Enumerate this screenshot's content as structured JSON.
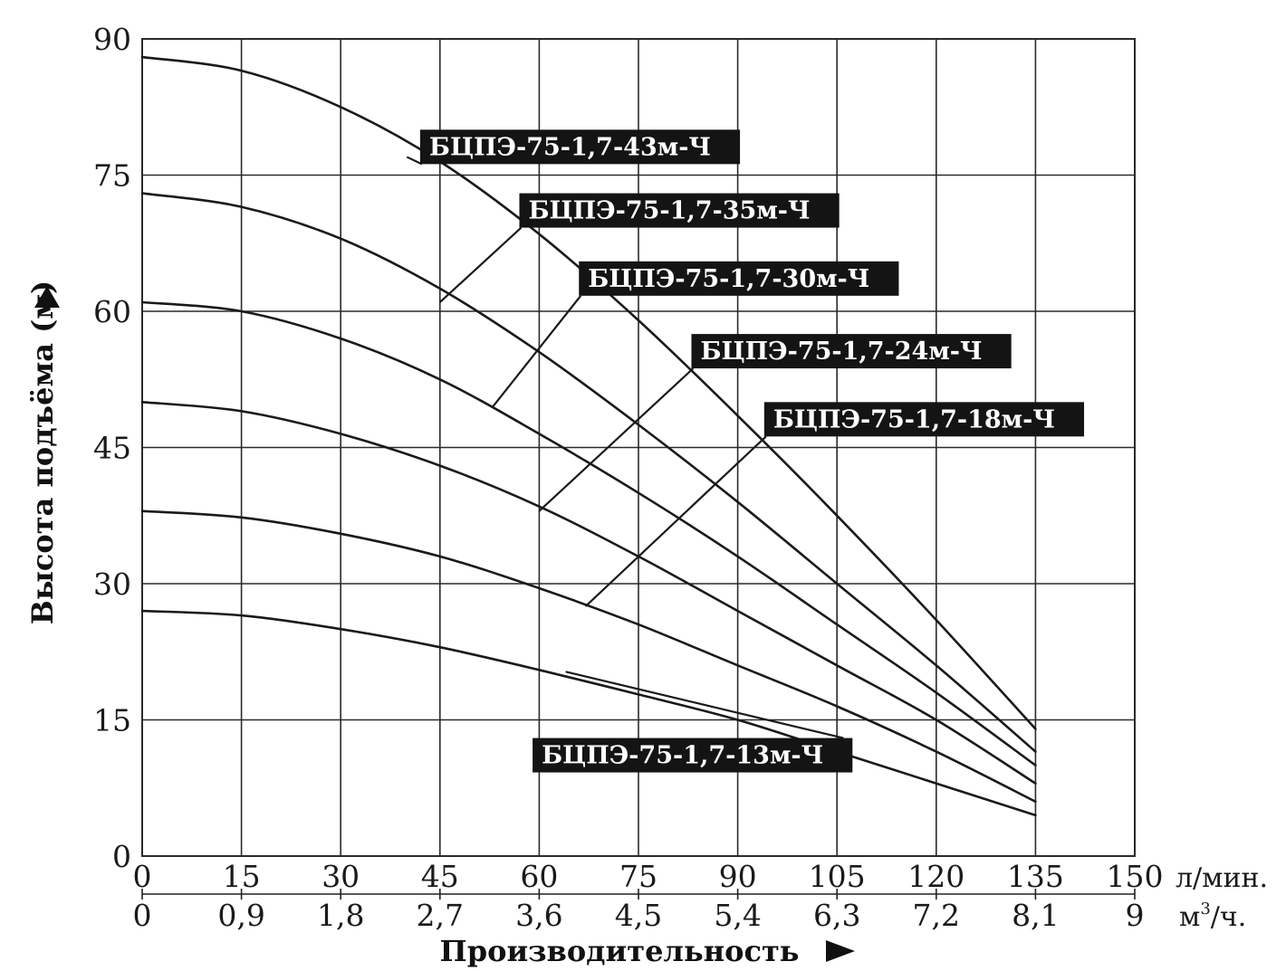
{
  "chart_data": {
    "type": "line",
    "title": "",
    "ylabel": "Высота подъёма (м)",
    "xlabel": "Производительность",
    "x_unit_primary": "л/мин.",
    "x_unit_secondary_base": "м",
    "x_unit_secondary_sup": "3",
    "x_unit_secondary_tail": "/ч.",
    "xlim": [
      0,
      150
    ],
    "ylim": [
      0,
      90
    ],
    "x_ticks": [
      0,
      15,
      30,
      45,
      60,
      75,
      90,
      105,
      120,
      135,
      150
    ],
    "x_tick_labels_primary": [
      "0",
      "15",
      "30",
      "45",
      "60",
      "75",
      "90",
      "105",
      "120",
      "135",
      "150"
    ],
    "x_tick_labels_secondary": [
      "0",
      "0,9",
      "1,8",
      "2,7",
      "3,6",
      "4,5",
      "5,4",
      "6,3",
      "7,2",
      "8,1",
      "9"
    ],
    "y_ticks": [
      0,
      15,
      30,
      45,
      60,
      75,
      90
    ],
    "y_tick_labels": [
      "0",
      "15",
      "30",
      "45",
      "60",
      "75",
      "90"
    ],
    "grid": true,
    "x": [
      0,
      15,
      30,
      45,
      60,
      75,
      90,
      105,
      120,
      135
    ],
    "series": [
      {
        "name": "БЦПЭ-75-1,7-43м-Ч",
        "values": [
          88,
          86.5,
          82.5,
          76.5,
          68.5,
          59,
          48.5,
          37.5,
          26,
          14
        ]
      },
      {
        "name": "БЦПЭ-75-1,7-35м-Ч",
        "values": [
          73,
          71.5,
          68,
          62.5,
          55.5,
          47.5,
          39,
          30,
          21,
          11.5
        ]
      },
      {
        "name": "БЦПЭ-75-1,7-30м-Ч",
        "values": [
          61,
          60,
          57,
          52.5,
          46.5,
          40,
          33,
          25.5,
          18,
          10
        ]
      },
      {
        "name": "БЦПЭ-75-1,7-24м-Ч",
        "values": [
          50,
          49,
          46.5,
          43,
          38.5,
          33,
          27,
          21,
          15,
          8
        ]
      },
      {
        "name": "БЦПЭ-75-1,7-18м-Ч",
        "values": [
          38,
          37.3,
          35.5,
          33,
          29.5,
          25.5,
          21,
          16.5,
          11.5,
          6
        ]
      },
      {
        "name": "БЦПЭ-75-1,7-13м-Ч",
        "values": [
          27,
          26.5,
          25,
          23,
          20.5,
          17.8,
          15,
          11.5,
          8,
          4.5
        ]
      }
    ],
    "labels": [
      {
        "series": 0,
        "text": "БЦПЭ-75-1,7-43м-Ч",
        "box_x": 42,
        "box_y": 80,
        "leader_to_x": 40,
        "leader_to_y": 77
      },
      {
        "series": 1,
        "text": "БЦПЭ-75-1,7-35м-Ч",
        "box_x": 57,
        "box_y": 73,
        "leader_to_x": 45,
        "leader_to_y": 61
      },
      {
        "series": 2,
        "text": "БЦПЭ-75-1,7-30м-Ч",
        "box_x": 66,
        "box_y": 65.5,
        "leader_to_x": 53,
        "leader_to_y": 49.5
      },
      {
        "series": 3,
        "text": "БЦПЭ-75-1,7-24м-Ч",
        "box_x": 83,
        "box_y": 57.5,
        "leader_to_x": 60,
        "leader_to_y": 38
      },
      {
        "series": 4,
        "text": "БЦПЭ-75-1,7-18м-Ч",
        "box_x": 94,
        "box_y": 50,
        "leader_to_x": 67,
        "leader_to_y": 27.5
      },
      {
        "series": 5,
        "text": "БЦПЭ-75-1,7-13м-Ч",
        "box_x": 59,
        "box_y": 13,
        "leader_to_x": 64,
        "leader_to_y": 20.3
      }
    ],
    "line_color": "#1a1a1a",
    "grid_color": "#2a2a2a",
    "label_bg": "#141414",
    "label_fg": "#ffffff"
  }
}
